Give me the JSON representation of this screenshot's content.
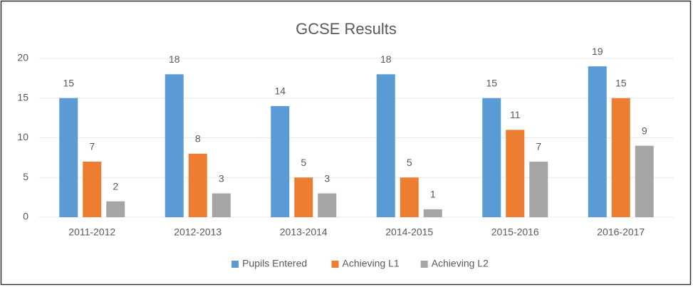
{
  "chart_data": {
    "type": "bar",
    "title": "GCSE Results",
    "categories": [
      "2011-2012",
      "2012-2013",
      "2013-2014",
      "2014-2015",
      "2015-2016",
      "2016-2017"
    ],
    "series": [
      {
        "name": "Pupils Entered",
        "color": "#5b9bd5",
        "values": [
          15,
          18,
          14,
          18,
          15,
          19
        ]
      },
      {
        "name": "Achieving L1",
        "color": "#ed7d31",
        "values": [
          7,
          8,
          5,
          5,
          11,
          15
        ]
      },
      {
        "name": "Achieving L2",
        "color": "#a5a5a5",
        "values": [
          2,
          3,
          3,
          1,
          7,
          9
        ]
      }
    ],
    "ylim": [
      0,
      20
    ],
    "yticks": [
      0,
      5,
      10,
      15,
      20
    ],
    "grid": true,
    "legend": "bottom"
  }
}
